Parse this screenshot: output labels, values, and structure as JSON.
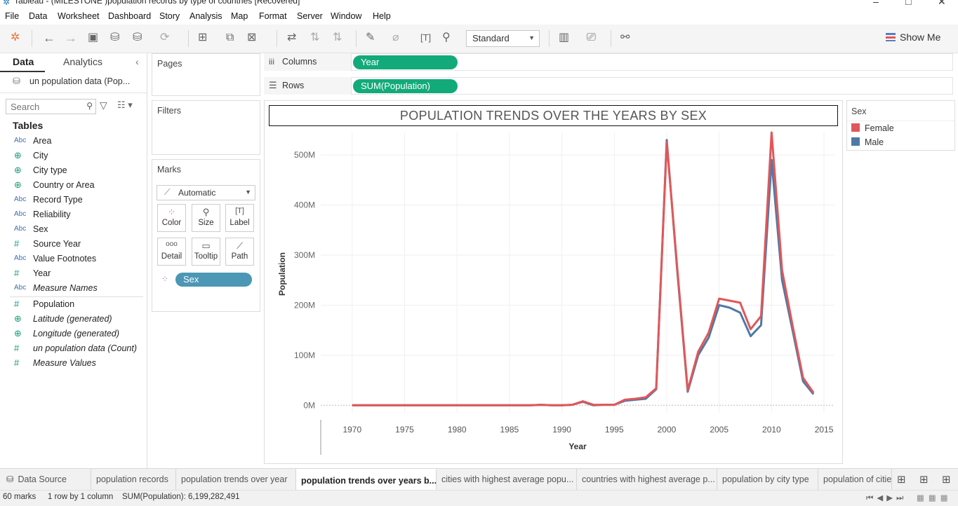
{
  "window": {
    "title": "Tableau - (MILESTONE )population records by type of countries [Recovered]"
  },
  "menu": [
    "File",
    "Data",
    "Worksheet",
    "Dashboard",
    "Story",
    "Analysis",
    "Map",
    "Format",
    "Server",
    "Window",
    "Help"
  ],
  "toolbar": {
    "fit_mode": "Standard",
    "show_me": "Show Me"
  },
  "left_pane": {
    "tabs": [
      "Data",
      "Analytics"
    ],
    "datasource": "un population data (Pop...",
    "search_placeholder": "Search",
    "tables_heading": "Tables",
    "fields": [
      {
        "type": "Abc",
        "name": "Area",
        "italic": false
      },
      {
        "type": "globe",
        "name": "City",
        "italic": false
      },
      {
        "type": "globe",
        "name": "City type",
        "italic": false
      },
      {
        "type": "globe",
        "name": "Country or Area",
        "italic": false
      },
      {
        "type": "Abc",
        "name": "Record Type",
        "italic": false
      },
      {
        "type": "Abc",
        "name": "Reliability",
        "italic": false
      },
      {
        "type": "Abc",
        "name": "Sex",
        "italic": false
      },
      {
        "type": "#",
        "name": "Source Year",
        "italic": false
      },
      {
        "type": "Abc",
        "name": "Value Footnotes",
        "italic": false
      },
      {
        "type": "#",
        "name": "Year",
        "italic": false
      },
      {
        "type": "Abc",
        "name": "Measure Names",
        "italic": true
      }
    ],
    "measures": [
      {
        "type": "#",
        "name": "Population",
        "italic": false
      },
      {
        "type": "globe",
        "name": "Latitude (generated)",
        "italic": true
      },
      {
        "type": "globe",
        "name": "Longitude (generated)",
        "italic": true
      },
      {
        "type": "#",
        "name": "un population data (Count)",
        "italic": true
      },
      {
        "type": "#",
        "name": "Measure Values",
        "italic": true
      }
    ]
  },
  "cards": {
    "pages": "Pages",
    "filters": "Filters",
    "marks": "Marks",
    "mark_type": "Automatic",
    "mark_buttons": [
      "Color",
      "Size",
      "Label",
      "Detail",
      "Tooltip",
      "Path"
    ],
    "mark_pill": "Sex"
  },
  "shelves": {
    "columns_label": "Columns",
    "columns_pill": "Year",
    "rows_label": "Rows",
    "rows_pill": "SUM(Population)"
  },
  "colors": {
    "female": "#e15759",
    "male": "#4e79a7",
    "pill_green": "#13aa7a",
    "pill_blue": "#4b97b5"
  },
  "chart_data": {
    "type": "line",
    "title": "POPULATION TRENDS OVER THE YEARS BY SEX",
    "xlabel": "Year",
    "ylabel": "Population",
    "xlim": [
      1967,
      2016
    ],
    "ylim": [
      -15,
      545
    ],
    "x_ticks": [
      1970,
      1975,
      1980,
      1985,
      1990,
      1995,
      2000,
      2005,
      2010,
      2015
    ],
    "y_ticks": [
      0,
      100,
      200,
      300,
      400,
      500
    ],
    "y_tick_labels": [
      "0M",
      "100M",
      "200M",
      "300M",
      "400M",
      "500M"
    ],
    "grid": true,
    "x": [
      1970,
      1971,
      1972,
      1973,
      1974,
      1975,
      1976,
      1977,
      1978,
      1979,
      1980,
      1981,
      1982,
      1983,
      1984,
      1985,
      1986,
      1987,
      1988,
      1989,
      1990,
      1991,
      1992,
      1993,
      1994,
      1995,
      1996,
      1997,
      1998,
      1999,
      2000,
      2001,
      2002,
      2003,
      2004,
      2005,
      2006,
      2007,
      2008,
      2009,
      2010,
      2011,
      2012,
      2013,
      2014
    ],
    "series": [
      {
        "name": "Male",
        "values": [
          0,
          0,
          0,
          0,
          0,
          0,
          0,
          0,
          0,
          0,
          0,
          0,
          0,
          0,
          0,
          0,
          0,
          0,
          1,
          0,
          0,
          1,
          7,
          0,
          1,
          1,
          9,
          11,
          13,
          32,
          530,
          270,
          27,
          100,
          135,
          200,
          195,
          185,
          138,
          160,
          490,
          250,
          150,
          48,
          22
        ]
      },
      {
        "name": "Female",
        "values": [
          0,
          0,
          0,
          0,
          0,
          0,
          0,
          0,
          0,
          0,
          0,
          0,
          0,
          0,
          0,
          0,
          0,
          0,
          1,
          0,
          0,
          1,
          8,
          1,
          1,
          1,
          11,
          13,
          16,
          34,
          525,
          275,
          30,
          107,
          145,
          213,
          209,
          205,
          152,
          178,
          545,
          270,
          160,
          55,
          25
        ]
      }
    ]
  },
  "legend": {
    "title": "Sex",
    "items": [
      {
        "name": "Female",
        "color": "#e15759"
      },
      {
        "name": "Male",
        "color": "#4e79a7"
      }
    ]
  },
  "sheet_tabs": [
    {
      "label": "Data Source",
      "active": false
    },
    {
      "label": "population records",
      "active": false
    },
    {
      "label": "population trends over year",
      "active": false
    },
    {
      "label": "population trends over years b...",
      "active": true
    },
    {
      "label": "cities with highest average popu...",
      "active": false
    },
    {
      "label": "countries with highest average p...",
      "active": false
    },
    {
      "label": "population by city type",
      "active": false
    },
    {
      "label": "population of citie",
      "active": false
    }
  ],
  "status": {
    "marks": "60 marks",
    "dims": "1 row by 1 column",
    "sum": "SUM(Population): 6,199,282,491"
  }
}
